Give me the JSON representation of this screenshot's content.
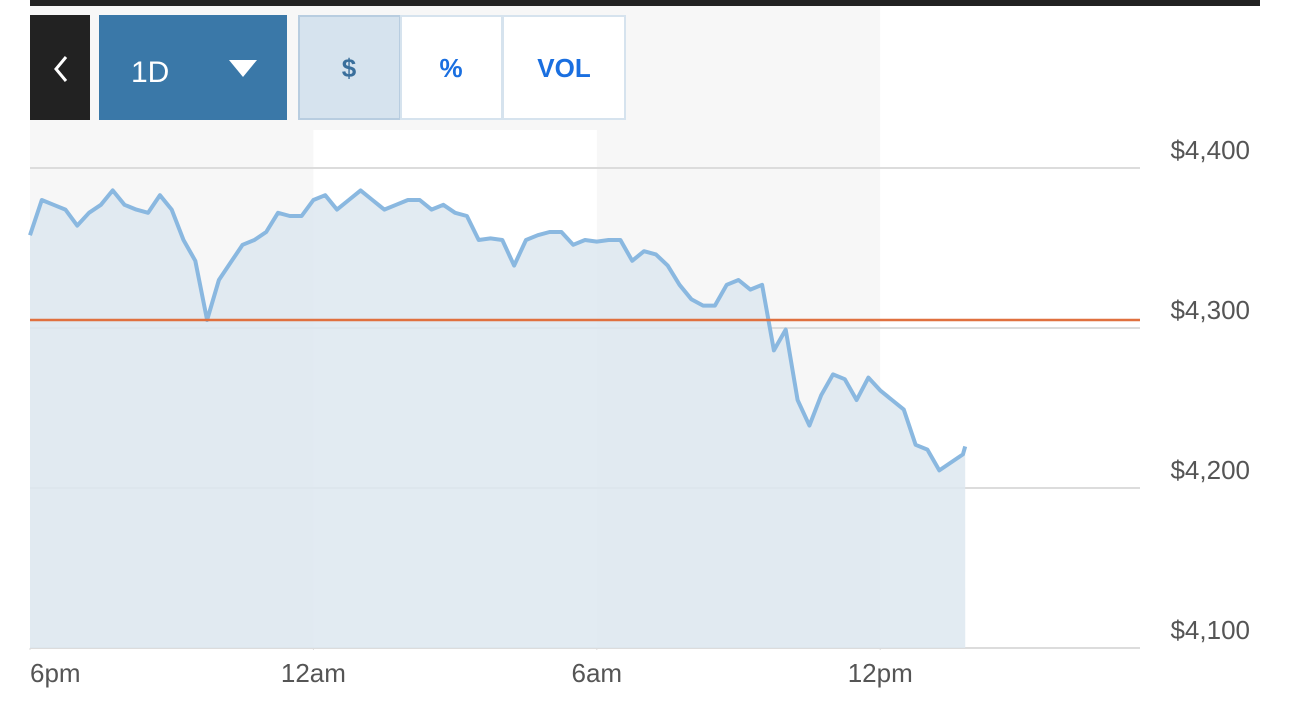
{
  "controls": {
    "range": "1D",
    "modes": [
      "$",
      "%",
      "VOL"
    ]
  },
  "chart_data": {
    "type": "line",
    "x": [
      0,
      0.25,
      0.5,
      0.75,
      1,
      1.25,
      1.5,
      1.75,
      2,
      2.25,
      2.5,
      2.75,
      3,
      3.25,
      3.5,
      3.75,
      4,
      4.25,
      4.5,
      4.75,
      5,
      5.25,
      5.5,
      5.75,
      6,
      6.25,
      6.5,
      6.75,
      7,
      7.25,
      7.5,
      7.75,
      8,
      8.25,
      8.5,
      8.75,
      9,
      9.25,
      9.5,
      9.75,
      10,
      10.25,
      10.5,
      10.75,
      11,
      11.25,
      11.5,
      11.75,
      12,
      12.25,
      12.5,
      12.75,
      13,
      13.25,
      13.5,
      13.75,
      14,
      14.25,
      14.5,
      14.75,
      15,
      15.25,
      15.5,
      15.75,
      16,
      16.25,
      16.5,
      16.75,
      17,
      17.25,
      17.5,
      17.75,
      18,
      18.25,
      18.5,
      18.75,
      19,
      19.25,
      19.5,
      19.75,
      19.8
    ],
    "series": [
      {
        "color": "#8ab8e0",
        "fill": "#dde7f0",
        "values": [
          4358,
          4380,
          4377,
          4374,
          4364,
          4372,
          4377,
          4386,
          4377,
          4374,
          4372,
          4383,
          4374,
          4355,
          4342,
          4305,
          4330,
          4341,
          4352,
          4355,
          4360,
          4372,
          4370,
          4370,
          4380,
          4383,
          4374,
          4380,
          4386,
          4380,
          4374,
          4377,
          4380,
          4380,
          4374,
          4377,
          4372,
          4370,
          4355,
          4356,
          4355,
          4339,
          4355,
          4358,
          4360,
          4360,
          4352,
          4355,
          4354,
          4355,
          4355,
          4342,
          4348,
          4346,
          4339,
          4327,
          4318,
          4314,
          4314,
          4327,
          4330,
          4324,
          4327,
          4286,
          4299,
          4255,
          4239,
          4258,
          4271,
          4268,
          4255,
          4269,
          4261,
          4255,
          4249,
          4227,
          4224,
          4211,
          4216,
          4221,
          4226
        ]
      }
    ],
    "reference_line": {
      "value": 4305,
      "color": "#e0703f"
    },
    "xlim": [
      0,
      23.5
    ],
    "xticks": [
      {
        "value": 0,
        "label": "6pm"
      },
      {
        "value": 6,
        "label": "12am"
      },
      {
        "value": 12,
        "label": "6am"
      },
      {
        "value": 18,
        "label": "12pm"
      }
    ],
    "ylim": [
      4100,
      4400
    ],
    "yticks": [
      {
        "value": 4100,
        "label": "$4,100"
      },
      {
        "value": 4200,
        "label": "$4,200"
      },
      {
        "value": 4300,
        "label": "$4,300"
      },
      {
        "value": 4400,
        "label": "$4,400"
      }
    ],
    "grid": true
  }
}
